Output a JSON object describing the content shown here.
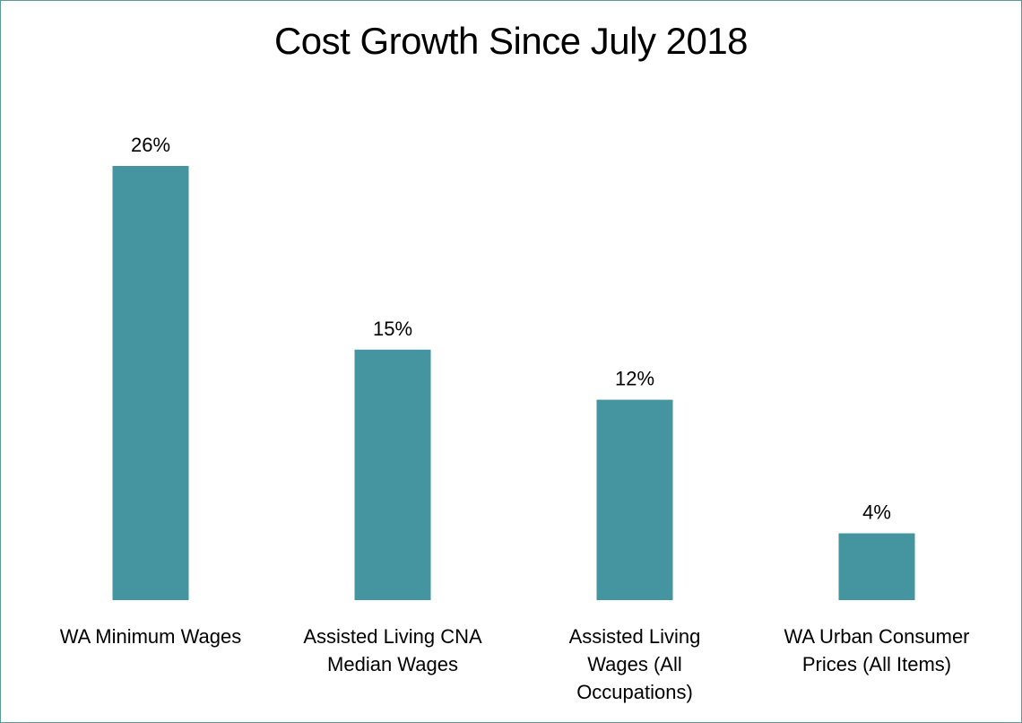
{
  "chart_data": {
    "type": "bar",
    "title": "Cost Growth Since July 2018",
    "xlabel": "",
    "ylabel": "",
    "categories": [
      [
        "WA Minimum Wages"
      ],
      [
        "Assisted Living CNA",
        "Median Wages"
      ],
      [
        "Assisted Living",
        "Wages (All",
        "Occupations)"
      ],
      [
        "WA Urban Consumer",
        "Prices (All Items)"
      ]
    ],
    "values": [
      26,
      15,
      12,
      4
    ],
    "data_labels": [
      "26%",
      "15%",
      "12%",
      "4%"
    ],
    "ylim": [
      0,
      26
    ],
    "grid": false,
    "legend": "none",
    "colors": {
      "bar": "#4595a0",
      "frame": "#5b9a9a",
      "text": "#000000",
      "background": "#ffffff"
    }
  }
}
